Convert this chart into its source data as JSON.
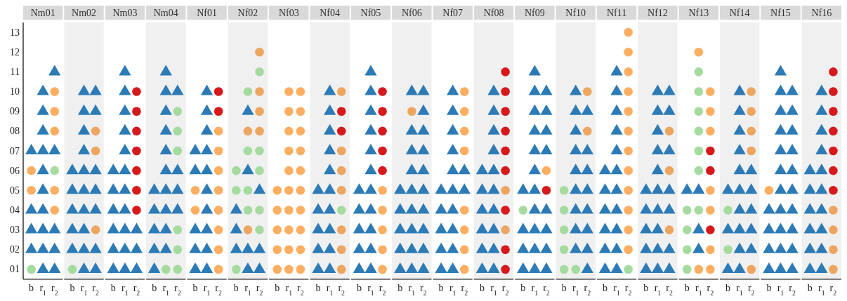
{
  "chart_data": [
    {
      "type": "scatter",
      "title": "Nm01",
      "categories": [
        "b",
        "r$_{1}$",
        "r$_{2}$"
      ],
      "ylim": [
        0.5,
        13.5
      ],
      "yticks": [
        {
          "value": 1,
          "label": "01"
        },
        {
          "value": 2,
          "label": "02"
        },
        {
          "value": 3,
          "label": "03"
        },
        {
          "value": 4,
          "label": "04"
        },
        {
          "value": 5,
          "label": "05"
        },
        {
          "value": 6,
          "label": "06"
        },
        {
          "value": 7,
          "label": "07"
        },
        {
          "value": 8,
          "label": "08"
        },
        {
          "value": 9,
          "label": "09"
        },
        {
          "value": 10,
          "label": "10"
        },
        {
          "value": 11,
          "label": "11"
        },
        {
          "value": 12,
          "label": "12"
        },
        {
          "value": 13,
          "label": "13"
        }
      ],
      "series": [
        {
          "color": "#2c7bb6",
          "marker": "triangle",
          "x": [
            "b",
            "b",
            "b",
            "b",
            "r$_{1}$",
            "r$_{1}$",
            "r$_{1}$",
            "r$_{1}$",
            "r$_{1}$",
            "r$_{1}$",
            "r$_{1}$",
            "r$_{1}$",
            "r$_{1}$",
            "r$_{1}$",
            "r$_{2}$",
            "r$_{2}$",
            "r$_{2}$",
            "r$_{2}$",
            "r$_{2}$"
          ],
          "values": [
            2,
            3,
            4,
            7,
            1,
            2,
            3,
            4,
            5,
            6,
            7,
            8,
            9,
            10,
            1,
            2,
            3,
            7,
            11
          ]
        },
        {
          "color": "#fdae61",
          "marker": "circle",
          "x": [
            "b",
            "b",
            "r$_{2}$",
            "r$_{2}$",
            "r$_{2}$",
            "r$_{2}$",
            "r$_{2}$"
          ],
          "values": [
            5,
            6,
            4,
            5,
            8,
            9,
            10
          ]
        },
        {
          "color": "#a6dba0",
          "marker": "circle",
          "x": [
            "b",
            "r$_{2}$"
          ],
          "values": [
            1,
            6
          ]
        }
      ]
    },
    {
      "type": "scatter",
      "title": "Nm02",
      "categories": [
        "b",
        "r$_{1}$",
        "r$_{2}$"
      ],
      "ylim": [
        0.5,
        13.5
      ],
      "tick_labels": "x",
      "series": [
        {
          "color": "#2c7bb6",
          "marker": "triangle",
          "x": [
            "b",
            "b",
            "b",
            "b",
            "b",
            "r$_{1}$",
            "r$_{1}$",
            "r$_{1}$",
            "r$_{1}$",
            "r$_{1}$",
            "r$_{1}$",
            "r$_{1}$",
            "r$_{1}$",
            "r$_{1}$",
            "r$_{1}$",
            "r$_{2}$",
            "r$_{2}$",
            "r$_{2}$",
            "r$_{2}$",
            "r$_{2}$",
            "r$_{2}$",
            "r$_{2}$"
          ],
          "values": [
            2,
            3,
            4,
            5,
            6,
            1,
            2,
            3,
            4,
            5,
            6,
            7,
            8,
            9,
            10,
            1,
            2,
            4,
            5,
            6,
            9,
            10
          ]
        },
        {
          "color": "#eea55f",
          "marker": "circle",
          "x": [
            "r$_{2}$",
            "r$_{2}$",
            "r$_{2}$"
          ],
          "values": [
            3,
            7,
            8
          ]
        },
        {
          "color": "#a6dba0",
          "marker": "circle",
          "x": [
            "b"
          ],
          "values": [
            1
          ]
        }
      ]
    },
    {
      "type": "scatter",
      "title": "Nm03",
      "categories": [
        "b",
        "r$_{1}$",
        "r$_{2}$"
      ],
      "ylim": [
        0.5,
        13.5
      ],
      "tick_labels": "x",
      "series": [
        {
          "color": "#2c7bb6",
          "marker": "triangle",
          "x": [
            "b",
            "b",
            "b",
            "b",
            "b",
            "b",
            "r$_{1}$",
            "r$_{1}$",
            "r$_{1}$",
            "r$_{1}$",
            "r$_{1}$",
            "r$_{1}$",
            "r$_{1}$",
            "r$_{1}$",
            "r$_{1}$",
            "r$_{1}$",
            "r$_{1}$",
            "r$_{2}$",
            "r$_{2}$",
            "r$_{2}$"
          ],
          "values": [
            1,
            2,
            3,
            4,
            5,
            6,
            1,
            2,
            3,
            4,
            5,
            6,
            7,
            8,
            9,
            10,
            11,
            1,
            2,
            3
          ]
        },
        {
          "color": "#d7191c",
          "marker": "circle",
          "x": [
            "r$_{2}$",
            "r$_{2}$",
            "r$_{2}$",
            "r$_{2}$",
            "r$_{2}$",
            "r$_{2}$",
            "r$_{2}$"
          ],
          "values": [
            4,
            5,
            6,
            7,
            8,
            9,
            10
          ]
        }
      ]
    },
    {
      "type": "scatter",
      "title": "Nm04",
      "categories": [
        "b",
        "r$_{1}$",
        "r$_{2}$"
      ],
      "ylim": [
        0.5,
        13.5
      ],
      "tick_labels": "x",
      "series": [
        {
          "color": "#2c7bb6",
          "marker": "triangle",
          "x": [
            "b",
            "b",
            "b",
            "b",
            "b",
            "r$_{1}$",
            "r$_{1}$",
            "r$_{1}$",
            "r$_{1}$",
            "r$_{1}$",
            "r$_{1}$",
            "r$_{1}$",
            "r$_{1}$",
            "r$_{1}$",
            "r$_{1}$",
            "r$_{2}$",
            "r$_{2}$",
            "r$_{2}$",
            "r$_{2}$"
          ],
          "values": [
            1,
            2,
            3,
            4,
            5,
            2,
            3,
            4,
            5,
            6,
            7,
            8,
            9,
            10,
            11,
            4,
            5,
            6,
            10
          ]
        },
        {
          "color": "#a6dba0",
          "marker": "circle",
          "x": [
            "r$_{1}$",
            "r$_{2}$",
            "r$_{2}$",
            "r$_{2}$",
            "r$_{2}$",
            "r$_{2}$",
            "r$_{2}$"
          ],
          "values": [
            1,
            1,
            2,
            3,
            7,
            8,
            9
          ]
        }
      ]
    },
    {
      "type": "scatter",
      "title": "Nf01",
      "categories": [
        "b",
        "r$_{1}$",
        "r$_{2}$"
      ],
      "ylim": [
        0.5,
        13.5
      ],
      "tick_labels": "x",
      "series": [
        {
          "color": "#2c7bb6",
          "marker": "triangle",
          "x": [
            "b",
            "b",
            "b",
            "b",
            "b",
            "r$_{1}$",
            "r$_{1}$",
            "r$_{1}$",
            "r$_{1}$",
            "r$_{1}$",
            "r$_{1}$",
            "r$_{1}$",
            "r$_{1}$",
            "r$_{1}$",
            "r$_{1}$"
          ],
          "values": [
            1,
            2,
            3,
            6,
            7,
            1,
            2,
            3,
            4,
            5,
            6,
            7,
            8,
            9,
            10
          ]
        },
        {
          "color": "#fdae61",
          "marker": "circle",
          "x": [
            "b",
            "b",
            "r$_{2}$",
            "r$_{2}$",
            "r$_{2}$",
            "r$_{2}$",
            "r$_{2}$",
            "r$_{2}$",
            "r$_{2}$",
            "r$_{2}$"
          ],
          "values": [
            4,
            5,
            1,
            2,
            3,
            4,
            5,
            6,
            7,
            8
          ]
        },
        {
          "color": "#d7191c",
          "marker": "circle",
          "x": [
            "r$_{2}$",
            "r$_{2}$"
          ],
          "values": [
            9,
            10
          ]
        }
      ]
    },
    {
      "type": "scatter",
      "title": "Nf02",
      "categories": [
        "b",
        "r$_{1}$",
        "r$_{2}$"
      ],
      "ylim": [
        0.5,
        13.5
      ],
      "tick_labels": "x",
      "series": [
        {
          "color": "#2c7bb6",
          "marker": "triangle",
          "x": [
            "b",
            "b",
            "b",
            "r$_{1}$",
            "r$_{1}$",
            "r$_{1}$",
            "r$_{1}$",
            "r$_{2}$",
            "r$_{2}$",
            "r$_{2}$"
          ],
          "values": [
            2,
            3,
            4,
            1,
            2,
            6,
            9,
            1,
            2,
            5
          ]
        },
        {
          "color": "#eea55f",
          "marker": "circle",
          "x": [
            "r$_{1}$",
            "r$_{1}$",
            "r$_{2}$",
            "r$_{2}$",
            "r$_{2}$",
            "r$_{2}$"
          ],
          "values": [
            3,
            8,
            8,
            9,
            10,
            12
          ]
        },
        {
          "color": "#a6dba0",
          "marker": "circle",
          "x": [
            "b",
            "b",
            "b",
            "r$_{1}$",
            "r$_{1}$",
            "r$_{1}$",
            "r$_{1}$",
            "r$_{2}$",
            "r$_{2}$",
            "r$_{2}$",
            "r$_{2}$",
            "r$_{2}$"
          ],
          "values": [
            1,
            5,
            6,
            4,
            5,
            7,
            10,
            3,
            4,
            6,
            7,
            11
          ]
        }
      ]
    },
    {
      "type": "scatter",
      "title": "Nf03",
      "categories": [
        "b",
        "r$_{1}$",
        "r$_{2}$"
      ],
      "ylim": [
        0.5,
        13.5
      ],
      "tick_labels": "x",
      "series": [
        {
          "color": "#fdae61",
          "marker": "circle",
          "x": [
            "b",
            "b",
            "b",
            "b",
            "b",
            "r$_{1}$",
            "r$_{1}$",
            "r$_{1}$",
            "r$_{1}$",
            "r$_{1}$",
            "r$_{1}$",
            "r$_{1}$",
            "r$_{1}$",
            "r$_{1}$",
            "r$_{1}$",
            "r$_{2}$",
            "r$_{2}$",
            "r$_{2}$",
            "r$_{2}$",
            "r$_{2}$",
            "r$_{2}$",
            "r$_{2}$",
            "r$_{2}$",
            "r$_{2}$",
            "r$_{2}$"
          ],
          "values": [
            1,
            2,
            3,
            4,
            5,
            1,
            2,
            3,
            4,
            5,
            6,
            7,
            8,
            9,
            10,
            1,
            2,
            3,
            4,
            5,
            6,
            7,
            8,
            9,
            10
          ]
        }
      ]
    },
    {
      "type": "scatter",
      "title": "Nf04",
      "categories": [
        "b",
        "r$_{1}$",
        "r$_{2}$"
      ],
      "ylim": [
        0.5,
        13.5
      ],
      "tick_labels": "x",
      "series": [
        {
          "color": "#2c7bb6",
          "marker": "triangle",
          "x": [
            "b",
            "b",
            "b",
            "b",
            "b",
            "r$_{1}$",
            "r$_{1}$",
            "r$_{1}$",
            "r$_{1}$",
            "r$_{1}$",
            "r$_{1}$",
            "r$_{1}$",
            "r$_{1}$",
            "r$_{1}$",
            "r$_{1}$"
          ],
          "values": [
            1,
            2,
            3,
            4,
            5,
            1,
            2,
            3,
            4,
            5,
            6,
            7,
            8,
            9,
            10
          ]
        },
        {
          "color": "#eea55f",
          "marker": "circle",
          "x": [
            "r$_{2}$",
            "r$_{2}$",
            "r$_{2}$",
            "r$_{2}$",
            "r$_{2}$",
            "r$_{2}$",
            "r$_{2}$"
          ],
          "values": [
            1,
            2,
            3,
            5,
            6,
            7,
            10
          ]
        },
        {
          "color": "#a6dba0",
          "marker": "circle",
          "x": [
            "r$_{2}$"
          ],
          "values": [
            4
          ]
        },
        {
          "color": "#d7191c",
          "marker": "circle",
          "x": [
            "r$_{2}$",
            "r$_{2}$"
          ],
          "values": [
            8,
            9
          ]
        }
      ]
    },
    {
      "type": "scatter",
      "title": "Nf05",
      "categories": [
        "b",
        "r$_{1}$",
        "r$_{2}$"
      ],
      "ylim": [
        0.5,
        13.5
      ],
      "tick_labels": "x",
      "series": [
        {
          "color": "#2c7bb6",
          "marker": "triangle",
          "x": [
            "b",
            "b",
            "b",
            "b",
            "b",
            "r$_{1}$",
            "r$_{1}$",
            "r$_{1}$",
            "r$_{1}$",
            "r$_{1}$",
            "r$_{1}$",
            "r$_{1}$",
            "r$_{1}$",
            "r$_{1}$",
            "r$_{1}$",
            "r$_{1}$"
          ],
          "values": [
            1,
            2,
            3,
            4,
            5,
            1,
            2,
            3,
            4,
            5,
            6,
            7,
            8,
            9,
            10,
            11
          ]
        },
        {
          "color": "#fdae61",
          "marker": "circle",
          "x": [
            "r$_{2}$",
            "r$_{2}$",
            "r$_{2}$",
            "r$_{2}$",
            "r$_{2}$"
          ],
          "values": [
            1,
            2,
            3,
            4,
            5
          ]
        },
        {
          "color": "#d7191c",
          "marker": "circle",
          "x": [
            "r$_{2}$",
            "r$_{2}$",
            "r$_{2}$",
            "r$_{2}$",
            "r$_{2}$"
          ],
          "values": [
            6,
            7,
            8,
            9,
            10
          ]
        }
      ]
    },
    {
      "type": "scatter",
      "title": "Nf06",
      "categories": [
        "b",
        "r$_{1}$",
        "r$_{2}$"
      ],
      "ylim": [
        0.5,
        13.5
      ],
      "tick_labels": "x",
      "series": [
        {
          "color": "#2c7bb6",
          "marker": "triangle",
          "x": [
            "b",
            "b",
            "b",
            "b",
            "b",
            "r$_{1}$",
            "r$_{1}$",
            "r$_{1}$",
            "r$_{1}$",
            "r$_{1}$",
            "r$_{1}$",
            "r$_{1}$",
            "r$_{1}$",
            "r$_{1}$",
            "r$_{2}$",
            "r$_{2}$",
            "r$_{2}$",
            "r$_{2}$",
            "r$_{2}$",
            "r$_{2}$",
            "r$_{2}$",
            "r$_{2}$",
            "r$_{2}$",
            "r$_{2}$"
          ],
          "values": [
            1,
            2,
            3,
            4,
            5,
            1,
            2,
            3,
            4,
            5,
            6,
            7,
            8,
            10,
            1,
            2,
            3,
            4,
            5,
            6,
            7,
            8,
            9,
            10
          ]
        },
        {
          "color": "#eea55f",
          "marker": "circle",
          "x": [
            "r$_{1}$"
          ],
          "values": [
            9
          ]
        }
      ]
    },
    {
      "type": "scatter",
      "title": "Nf07",
      "categories": [
        "b",
        "r$_{1}$",
        "r$_{2}$"
      ],
      "ylim": [
        0.5,
        13.5
      ],
      "tick_labels": "x",
      "series": [
        {
          "color": "#2c7bb6",
          "marker": "triangle",
          "x": [
            "b",
            "b",
            "b",
            "b",
            "b",
            "r$_{1}$",
            "r$_{1}$",
            "r$_{1}$",
            "r$_{1}$",
            "r$_{1}$",
            "r$_{1}$",
            "r$_{1}$",
            "r$_{1}$",
            "r$_{1}$",
            "r$_{1}$",
            "r$_{2}$",
            "r$_{2}$"
          ],
          "values": [
            1,
            2,
            3,
            4,
            5,
            1,
            2,
            3,
            4,
            5,
            6,
            7,
            8,
            9,
            10,
            5,
            6
          ]
        },
        {
          "color": "#fdae61",
          "marker": "circle",
          "x": [
            "r$_{2}$",
            "r$_{2}$",
            "r$_{2}$",
            "r$_{2}$",
            "r$_{2}$",
            "r$_{2}$",
            "r$_{2}$",
            "r$_{2}$"
          ],
          "values": [
            1,
            2,
            3,
            4,
            7,
            8,
            9,
            10
          ]
        }
      ]
    },
    {
      "type": "scatter",
      "title": "Nf08",
      "categories": [
        "b",
        "r$_{1}$",
        "r$_{2}$"
      ],
      "ylim": [
        0.5,
        13.5
      ],
      "tick_labels": "x",
      "series": [
        {
          "color": "#2c7bb6",
          "marker": "triangle",
          "x": [
            "b",
            "b",
            "b",
            "b",
            "b",
            "b",
            "r$_{1}$",
            "r$_{1}$",
            "r$_{1}$",
            "r$_{1}$",
            "r$_{1}$",
            "r$_{1}$",
            "r$_{1}$",
            "r$_{1}$",
            "r$_{1}$",
            "r$_{1}$"
          ],
          "values": [
            1,
            2,
            3,
            4,
            5,
            6,
            1,
            2,
            3,
            4,
            5,
            6,
            7,
            8,
            9,
            10
          ]
        },
        {
          "color": "#eea55f",
          "marker": "circle",
          "x": [
            "r$_{2}$",
            "r$_{2}$"
          ],
          "values": [
            3,
            5
          ]
        },
        {
          "color": "#d7191c",
          "marker": "circle",
          "x": [
            "r$_{2}$",
            "r$_{2}$",
            "r$_{2}$",
            "r$_{2}$",
            "r$_{2}$",
            "r$_{2}$",
            "r$_{2}$",
            "r$_{2}$",
            "r$_{2}$"
          ],
          "values": [
            1,
            2,
            4,
            6,
            7,
            8,
            9,
            10,
            11
          ]
        }
      ]
    },
    {
      "type": "scatter",
      "title": "Nf09",
      "categories": [
        "b",
        "r$_{1}$",
        "r$_{2}$"
      ],
      "ylim": [
        0.5,
        13.5
      ],
      "tick_labels": "x",
      "series": [
        {
          "color": "#2c7bb6",
          "marker": "triangle",
          "x": [
            "b",
            "b",
            "b",
            "b",
            "r$_{1}$",
            "r$_{1}$",
            "r$_{1}$",
            "r$_{1}$",
            "r$_{1}$",
            "r$_{1}$",
            "r$_{1}$",
            "r$_{1}$",
            "r$_{1}$",
            "r$_{1}$",
            "r$_{1}$",
            "r$_{2}$",
            "r$_{2}$",
            "r$_{2}$",
            "r$_{2}$",
            "r$_{2}$",
            "r$_{2}$",
            "r$_{2}$",
            "r$_{2}$"
          ],
          "values": [
            1,
            2,
            3,
            5,
            1,
            2,
            3,
            4,
            5,
            6,
            7,
            8,
            9,
            10,
            11,
            1,
            2,
            3,
            4,
            7,
            8,
            9,
            10
          ]
        },
        {
          "color": "#fdae61",
          "marker": "circle",
          "x": [
            "r$_{2}$"
          ],
          "values": [
            6
          ]
        },
        {
          "color": "#a6dba0",
          "marker": "circle",
          "x": [
            "b"
          ],
          "values": [
            4
          ]
        },
        {
          "color": "#d7191c",
          "marker": "circle",
          "x": [
            "r$_{2}$"
          ],
          "values": [
            5
          ]
        }
      ]
    },
    {
      "type": "scatter",
      "title": "Nf10",
      "categories": [
        "b",
        "r$_{1}$",
        "r$_{2}$"
      ],
      "ylim": [
        0.5,
        13.5
      ],
      "tick_labels": "x",
      "series": [
        {
          "color": "#2c7bb6",
          "marker": "triangle",
          "x": [
            "r$_{1}$",
            "r$_{1}$",
            "r$_{1}$",
            "r$_{1}$",
            "r$_{1}$",
            "r$_{1}$",
            "r$_{1}$",
            "r$_{1}$",
            "r$_{1}$",
            "r$_{2}$",
            "r$_{2}$",
            "r$_{2}$",
            "r$_{2}$",
            "r$_{2}$",
            "r$_{2}$",
            "r$_{2}$",
            "r$_{2}$"
          ],
          "values": [
            2,
            3,
            4,
            5,
            6,
            7,
            8,
            9,
            10,
            1,
            2,
            3,
            4,
            5,
            6,
            7,
            9
          ]
        },
        {
          "color": "#eea55f",
          "marker": "circle",
          "x": [
            "r$_{2}$",
            "r$_{2}$"
          ],
          "values": [
            8,
            10
          ]
        },
        {
          "color": "#a6dba0",
          "marker": "circle",
          "x": [
            "b",
            "b",
            "b",
            "b",
            "b",
            "r$_{1}$"
          ],
          "values": [
            1,
            2,
            3,
            4,
            5,
            1
          ]
        }
      ]
    },
    {
      "type": "scatter",
      "title": "Nf11",
      "categories": [
        "b",
        "r$_{1}$",
        "r$_{2}$"
      ],
      "ylim": [
        0.5,
        13.5
      ],
      "tick_labels": "x",
      "series": [
        {
          "color": "#2c7bb6",
          "marker": "triangle",
          "x": [
            "b",
            "b",
            "b",
            "b",
            "b",
            "b",
            "r$_{1}$",
            "r$_{1}$",
            "r$_{1}$",
            "r$_{1}$",
            "r$_{1}$",
            "r$_{1}$",
            "r$_{1}$",
            "r$_{1}$",
            "r$_{1}$",
            "r$_{1}$",
            "r$_{1}$"
          ],
          "values": [
            1,
            2,
            3,
            4,
            5,
            6,
            1,
            2,
            3,
            4,
            5,
            6,
            7,
            8,
            9,
            10,
            11
          ]
        },
        {
          "color": "#fdae61",
          "marker": "circle",
          "x": [
            "r$_{2}$",
            "r$_{2}$",
            "r$_{2}$",
            "r$_{2}$",
            "r$_{2}$",
            "r$_{2}$",
            "r$_{2}$",
            "r$_{2}$",
            "r$_{2}$",
            "r$_{2}$",
            "r$_{2}$",
            "r$_{2}$"
          ],
          "values": [
            2,
            3,
            4,
            5,
            6,
            7,
            8,
            9,
            10,
            11,
            12,
            13
          ]
        },
        {
          "color": "#a6dba0",
          "marker": "circle",
          "x": [
            "r$_{2}$"
          ],
          "values": [
            1
          ]
        }
      ]
    },
    {
      "type": "scatter",
      "title": "Nf12",
      "categories": [
        "b",
        "r$_{1}$",
        "r$_{2}$"
      ],
      "ylim": [
        0.5,
        13.5
      ],
      "tick_labels": "x",
      "series": [
        {
          "color": "#2c7bb6",
          "marker": "triangle",
          "x": [
            "b",
            "b",
            "b",
            "b",
            "b",
            "r$_{1}$",
            "r$_{1}$",
            "r$_{1}$",
            "r$_{1}$",
            "r$_{1}$",
            "r$_{1}$",
            "r$_{1}$",
            "r$_{1}$",
            "r$_{1}$",
            "r$_{1}$",
            "r$_{2}$",
            "r$_{2}$",
            "r$_{2}$",
            "r$_{2}$",
            "r$_{2}$",
            "r$_{2}$",
            "r$_{2}$"
          ],
          "values": [
            1,
            2,
            3,
            4,
            5,
            1,
            2,
            3,
            4,
            5,
            6,
            7,
            8,
            9,
            10,
            1,
            2,
            4,
            5,
            7,
            9,
            10
          ]
        },
        {
          "color": "#eea55f",
          "marker": "circle",
          "x": [
            "r$_{2}$",
            "r$_{2}$",
            "r$_{2}$"
          ],
          "values": [
            3,
            6,
            8
          ]
        }
      ]
    },
    {
      "type": "scatter",
      "title": "Nf13",
      "categories": [
        "b",
        "r$_{1}$",
        "r$_{2}$"
      ],
      "ylim": [
        0.5,
        13.5
      ],
      "tick_labels": "x",
      "series": [
        {
          "color": "#2c7bb6",
          "marker": "triangle",
          "x": [
            "b",
            "r$_{1}$",
            "r$_{1}$",
            "r$_{1}$"
          ],
          "values": [
            5,
            2,
            3,
            5
          ]
        },
        {
          "color": "#fdae61",
          "marker": "circle",
          "x": [
            "r$_{1}$",
            "r$_{1}$",
            "r$_{2}$",
            "r$_{2}$",
            "r$_{2}$",
            "r$_{2}$",
            "r$_{2}$",
            "r$_{2}$",
            "r$_{2}$"
          ],
          "values": [
            1,
            12,
            1,
            2,
            4,
            5,
            8,
            9,
            10
          ]
        },
        {
          "color": "#a6dba0",
          "marker": "circle",
          "x": [
            "b",
            "b",
            "b",
            "b",
            "r$_{1}$",
            "r$_{1}$",
            "r$_{1}$",
            "r$_{1}$",
            "r$_{1}$",
            "r$_{1}$",
            "r$_{1}$"
          ],
          "values": [
            1,
            2,
            3,
            4,
            4,
            6,
            7,
            8,
            9,
            10,
            11
          ]
        },
        {
          "color": "#d7191c",
          "marker": "circle",
          "x": [
            "r$_{2}$",
            "r$_{2}$",
            "r$_{2}$"
          ],
          "values": [
            3,
            6,
            7
          ]
        }
      ]
    },
    {
      "type": "scatter",
      "title": "Nf14",
      "categories": [
        "b",
        "r$_{1}$",
        "r$_{2}$"
      ],
      "ylim": [
        0.5,
        13.5
      ],
      "tick_labels": "x",
      "series": [
        {
          "color": "#2c7bb6",
          "marker": "triangle",
          "x": [
            "b",
            "b",
            "b",
            "r$_{1}$",
            "r$_{1}$",
            "r$_{1}$",
            "r$_{1}$",
            "r$_{1}$",
            "r$_{1}$",
            "r$_{1}$",
            "r$_{1}$",
            "r$_{1}$",
            "r$_{1}$",
            "r$_{2}$",
            "r$_{2}$",
            "r$_{2}$",
            "r$_{2}$",
            "r$_{2}$"
          ],
          "values": [
            1,
            3,
            5,
            1,
            2,
            3,
            4,
            5,
            6,
            7,
            8,
            9,
            10,
            2,
            3,
            4,
            5,
            6
          ]
        },
        {
          "color": "#eea55f",
          "marker": "circle",
          "x": [
            "r$_{2}$",
            "r$_{2}$",
            "r$_{2}$",
            "r$_{2}$",
            "r$_{2}$"
          ],
          "values": [
            1,
            7,
            8,
            9,
            10
          ]
        },
        {
          "color": "#a6dba0",
          "marker": "circle",
          "x": [
            "b",
            "b"
          ],
          "values": [
            2,
            4
          ]
        }
      ]
    },
    {
      "type": "scatter",
      "title": "Nf15",
      "categories": [
        "b",
        "r$_{1}$",
        "r$_{2}$"
      ],
      "ylim": [
        0.5,
        13.5
      ],
      "tick_labels": "x",
      "series": [
        {
          "color": "#2c7bb6",
          "marker": "triangle",
          "x": [
            "b",
            "b",
            "b",
            "b",
            "r$_{1}$",
            "r$_{1}$",
            "r$_{1}$",
            "r$_{1}$",
            "r$_{1}$",
            "r$_{1}$",
            "r$_{1}$",
            "r$_{1}$",
            "r$_{1}$",
            "r$_{1}$",
            "r$_{1}$",
            "r$_{2}$",
            "r$_{2}$",
            "r$_{2}$",
            "r$_{2}$",
            "r$_{2}$",
            "r$_{2}$",
            "r$_{2}$",
            "r$_{2}$",
            "r$_{2}$",
            "r$_{2}$"
          ],
          "values": [
            1,
            2,
            3,
            4,
            1,
            2,
            3,
            4,
            5,
            6,
            7,
            8,
            9,
            10,
            11,
            1,
            2,
            3,
            4,
            5,
            6,
            7,
            8,
            9,
            10
          ]
        },
        {
          "color": "#fdae61",
          "marker": "circle",
          "x": [
            "b"
          ],
          "values": [
            5
          ]
        }
      ]
    },
    {
      "type": "scatter",
      "title": "Nf16",
      "categories": [
        "b",
        "r$_{1}$",
        "r$_{2}$"
      ],
      "ylim": [
        0.5,
        13.5
      ],
      "tick_labels": "x",
      "series": [
        {
          "color": "#2c7bb6",
          "marker": "triangle",
          "x": [
            "b",
            "b",
            "b",
            "b",
            "b",
            "b",
            "r$_{1}$",
            "r$_{1}$",
            "r$_{1}$",
            "r$_{1}$",
            "r$_{1}$",
            "r$_{1}$",
            "r$_{1}$",
            "r$_{1}$",
            "r$_{1}$",
            "r$_{1}$"
          ],
          "values": [
            1,
            2,
            3,
            4,
            5,
            6,
            1,
            2,
            3,
            4,
            5,
            6,
            7,
            8,
            9,
            10
          ]
        },
        {
          "color": "#eea55f",
          "marker": "circle",
          "x": [
            "r$_{2}$",
            "r$_{2}$",
            "r$_{2}$",
            "r$_{2}$"
          ],
          "values": [
            1,
            2,
            3,
            4
          ]
        },
        {
          "color": "#d7191c",
          "marker": "circle",
          "x": [
            "r$_{2}$",
            "r$_{2}$",
            "r$_{2}$",
            "r$_{2}$",
            "r$_{2}$",
            "r$_{2}$",
            "r$_{2}$"
          ],
          "values": [
            5,
            6,
            7,
            8,
            9,
            10,
            11
          ]
        }
      ]
    }
  ]
}
